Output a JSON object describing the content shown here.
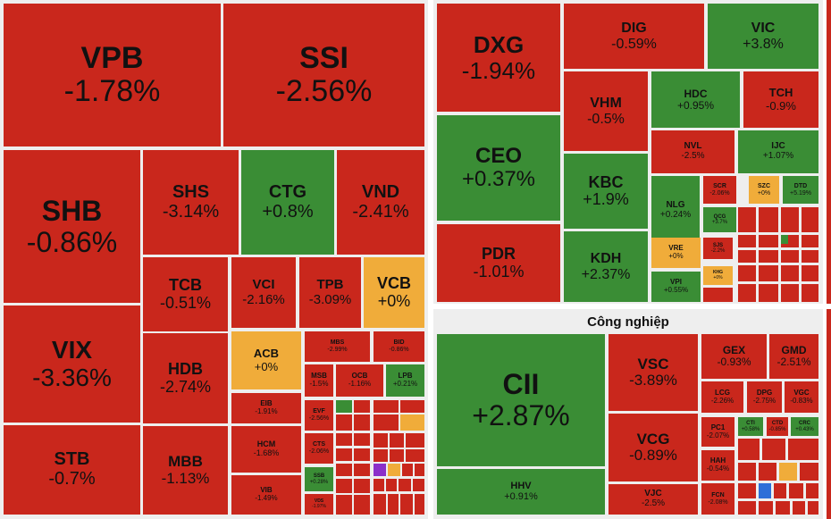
{
  "colors": {
    "down": "#c9271c",
    "up": "#3a8d35",
    "flat": "#f0ac3a"
  },
  "sections": [
    {
      "title": ""
    },
    {
      "title": ""
    },
    {
      "title": "Công nghiệp"
    }
  ],
  "tiles": [
    {
      "sym": "VPB",
      "chg": "-1.78%",
      "c": "r"
    },
    {
      "sym": "SSI",
      "chg": "-2.56%",
      "c": "r"
    },
    {
      "sym": "SHB",
      "chg": "-0.86%",
      "c": "r"
    },
    {
      "sym": "SHS",
      "chg": "-3.14%",
      "c": "r"
    },
    {
      "sym": "CTG",
      "chg": "+0.8%",
      "c": "g"
    },
    {
      "sym": "VND",
      "chg": "-2.41%",
      "c": "r"
    },
    {
      "sym": "VIX",
      "chg": "-3.36%",
      "c": "r"
    },
    {
      "sym": "TCB",
      "chg": "-0.51%",
      "c": "r"
    },
    {
      "sym": "VCI",
      "chg": "-2.16%",
      "c": "r"
    },
    {
      "sym": "TPB",
      "chg": "-3.09%",
      "c": "r"
    },
    {
      "sym": "VCB",
      "chg": "+0%",
      "c": "y"
    },
    {
      "sym": "ACB",
      "chg": "+0%",
      "c": "y"
    },
    {
      "sym": "MBS",
      "chg": "-2.99%",
      "c": "r"
    },
    {
      "sym": "BID",
      "chg": "-0.86%",
      "c": "r"
    },
    {
      "sym": "HDB",
      "chg": "-2.74%",
      "c": "r"
    },
    {
      "sym": "MSB",
      "chg": "-1.5%",
      "c": "r"
    },
    {
      "sym": "OCB",
      "chg": "-1.16%",
      "c": "r"
    },
    {
      "sym": "LPB",
      "chg": "+0.21%",
      "c": "g"
    },
    {
      "sym": "EIB",
      "chg": "-1.91%",
      "c": "r"
    },
    {
      "sym": "EVF",
      "chg": "-2.56%",
      "c": "r"
    },
    {
      "sym": "STB",
      "chg": "-0.7%",
      "c": "r"
    },
    {
      "sym": "MBB",
      "chg": "-1.13%",
      "c": "r"
    },
    {
      "sym": "HCM",
      "chg": "-1.68%",
      "c": "r"
    },
    {
      "sym": "CTS",
      "chg": "-2.06%",
      "c": "r"
    },
    {
      "sym": "SSB",
      "chg": "+0.28%",
      "c": "g"
    },
    {
      "sym": "VIB",
      "chg": "-1.49%",
      "c": "r"
    },
    {
      "sym": "VDS",
      "chg": "-1.97%",
      "c": "r"
    },
    {
      "sym": "DXG",
      "chg": "-1.94%",
      "c": "r"
    },
    {
      "sym": "DIG",
      "chg": "-0.59%",
      "c": "r"
    },
    {
      "sym": "VIC",
      "chg": "+3.8%",
      "c": "g"
    },
    {
      "sym": "VHM",
      "chg": "-0.5%",
      "c": "r"
    },
    {
      "sym": "HDC",
      "chg": "+0.95%",
      "c": "g"
    },
    {
      "sym": "TCH",
      "chg": "-0.9%",
      "c": "r"
    },
    {
      "sym": "CEO",
      "chg": "+0.37%",
      "c": "g"
    },
    {
      "sym": "NVL",
      "chg": "-2.5%",
      "c": "r"
    },
    {
      "sym": "IJC",
      "chg": "+1.07%",
      "c": "g"
    },
    {
      "sym": "KBC",
      "chg": "+1.9%",
      "c": "g"
    },
    {
      "sym": "NLG",
      "chg": "+0.24%",
      "c": "g"
    },
    {
      "sym": "SCR",
      "chg": "-2.06%",
      "c": "r"
    },
    {
      "sym": "SZC",
      "chg": "+0%",
      "c": "y"
    },
    {
      "sym": "DTD",
      "chg": "+5.19%",
      "c": "g"
    },
    {
      "sym": "QCG",
      "chg": "+3.7%",
      "c": "g"
    },
    {
      "sym": "PDR",
      "chg": "-1.01%",
      "c": "r"
    },
    {
      "sym": "KDH",
      "chg": "+2.37%",
      "c": "g"
    },
    {
      "sym": "VRE",
      "chg": "+0%",
      "c": "y"
    },
    {
      "sym": "SJS",
      "chg": "-2.2%",
      "c": "r"
    },
    {
      "sym": "KHG",
      "chg": "+0%",
      "c": "y"
    },
    {
      "sym": "VPI",
      "chg": "+0.55%",
      "c": "g"
    },
    {
      "sym": "CII",
      "chg": "+2.87%",
      "c": "g"
    },
    {
      "sym": "VSC",
      "chg": "-3.89%",
      "c": "r"
    },
    {
      "sym": "GEX",
      "chg": "-0.93%",
      "c": "r"
    },
    {
      "sym": "GMD",
      "chg": "-2.51%",
      "c": "r"
    },
    {
      "sym": "LCG",
      "chg": "-2.26%",
      "c": "r"
    },
    {
      "sym": "DPG",
      "chg": "-2.75%",
      "c": "r"
    },
    {
      "sym": "VGC",
      "chg": "-0.83%",
      "c": "r"
    },
    {
      "sym": "VCG",
      "chg": "-0.89%",
      "c": "r"
    },
    {
      "sym": "PC1",
      "chg": "-2.07%",
      "c": "r"
    },
    {
      "sym": "CTI",
      "chg": "+0.58%",
      "c": "g"
    },
    {
      "sym": "CTD",
      "chg": "-0.85%",
      "c": "r"
    },
    {
      "sym": "CRC",
      "chg": "+0.43%",
      "c": "g"
    },
    {
      "sym": "HAH",
      "chg": "-0.54%",
      "c": "r"
    },
    {
      "sym": "HHV",
      "chg": "+0.91%",
      "c": "g"
    },
    {
      "sym": "VJC",
      "chg": "-2.5%",
      "c": "r"
    },
    {
      "sym": "FCN",
      "chg": "-2.08%",
      "c": "r"
    }
  ]
}
